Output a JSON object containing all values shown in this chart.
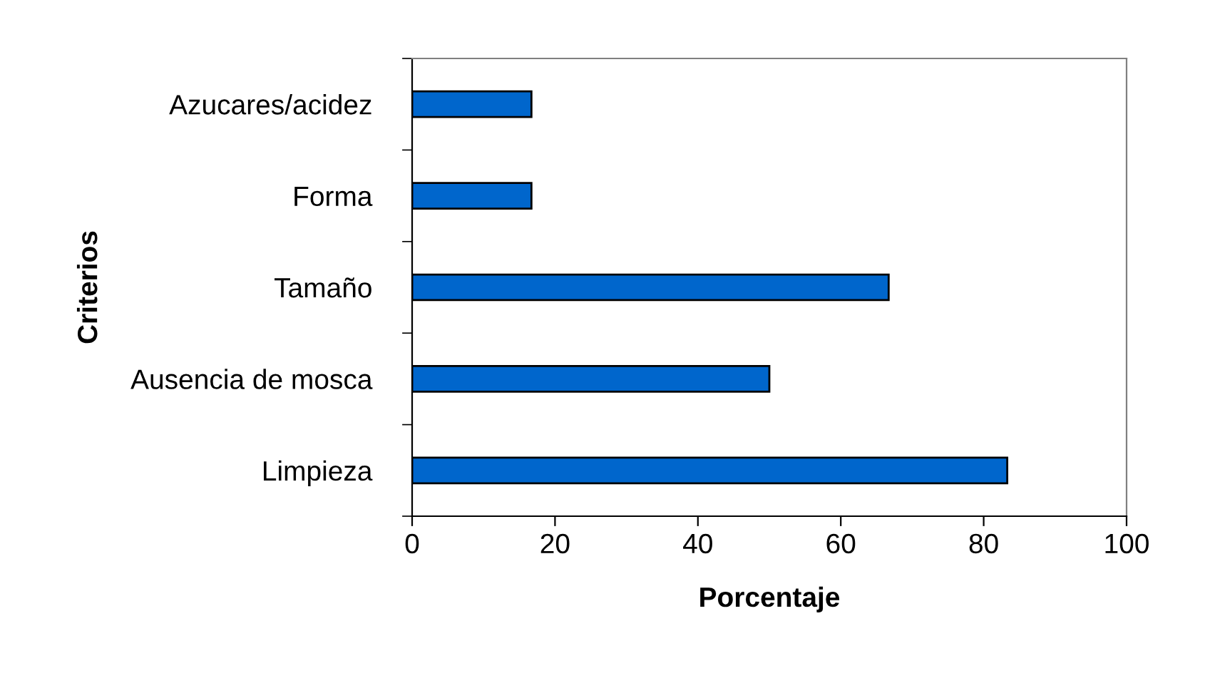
{
  "chart_data": {
    "type": "bar",
    "orientation": "horizontal",
    "xlabel": "Porcentaje",
    "ylabel": "Criterios",
    "categories": [
      "Azucares/acidez",
      "Forma",
      "Tamaño",
      "Ausencia de mosca",
      "Limpieza"
    ],
    "values": [
      16.7,
      16.7,
      66.7,
      50,
      83.3
    ],
    "color": "#0066cc",
    "xlim": [
      0,
      100
    ],
    "xticks": [
      0,
      20,
      40,
      60,
      80,
      100
    ],
    "grid": false,
    "legend": false
  }
}
